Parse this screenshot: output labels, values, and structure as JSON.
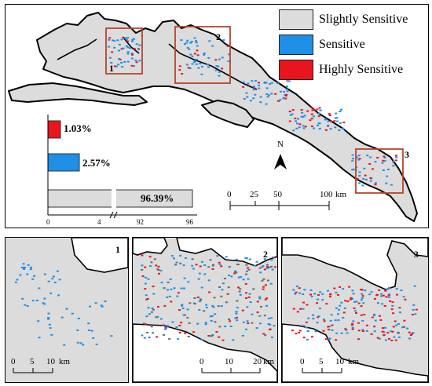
{
  "legend": {
    "items": [
      {
        "label": "Slightly Sensitive",
        "color": "#dcdcdc"
      },
      {
        "label": "Sensitive",
        "color": "#1e90e6"
      },
      {
        "label": "Highly Sensitive",
        "color": "#e8141e"
      }
    ]
  },
  "chart_data": {
    "type": "bar",
    "orientation": "horizontal",
    "categories": [
      "Highly Sensitive",
      "Sensitive",
      "Slightly Sensitive"
    ],
    "values": [
      1.03,
      2.57,
      96.39
    ],
    "value_labels": [
      "1.03%",
      "2.57%",
      "96.39%"
    ],
    "colors": [
      "#e8141e",
      "#1e90e6",
      "#dcdcdc"
    ],
    "axis_break": true,
    "x_ticks": [
      "0",
      "4",
      "92",
      "96"
    ]
  },
  "main_map": {
    "north_label": "N",
    "scale_ticks": [
      "0",
      "25",
      "50",
      "100"
    ],
    "scale_unit": "km",
    "box_labels": [
      "1",
      "2",
      "3"
    ]
  },
  "insets": [
    {
      "number": "1",
      "scale_ticks": [
        "0",
        "5",
        "10"
      ],
      "scale_unit": "km"
    },
    {
      "number": "2",
      "scale_ticks": [
        "0",
        "10",
        "20"
      ],
      "scale_unit": "km"
    },
    {
      "number": "3",
      "scale_ticks": [
        "0",
        "5",
        "10"
      ],
      "scale_unit": "km"
    }
  ]
}
